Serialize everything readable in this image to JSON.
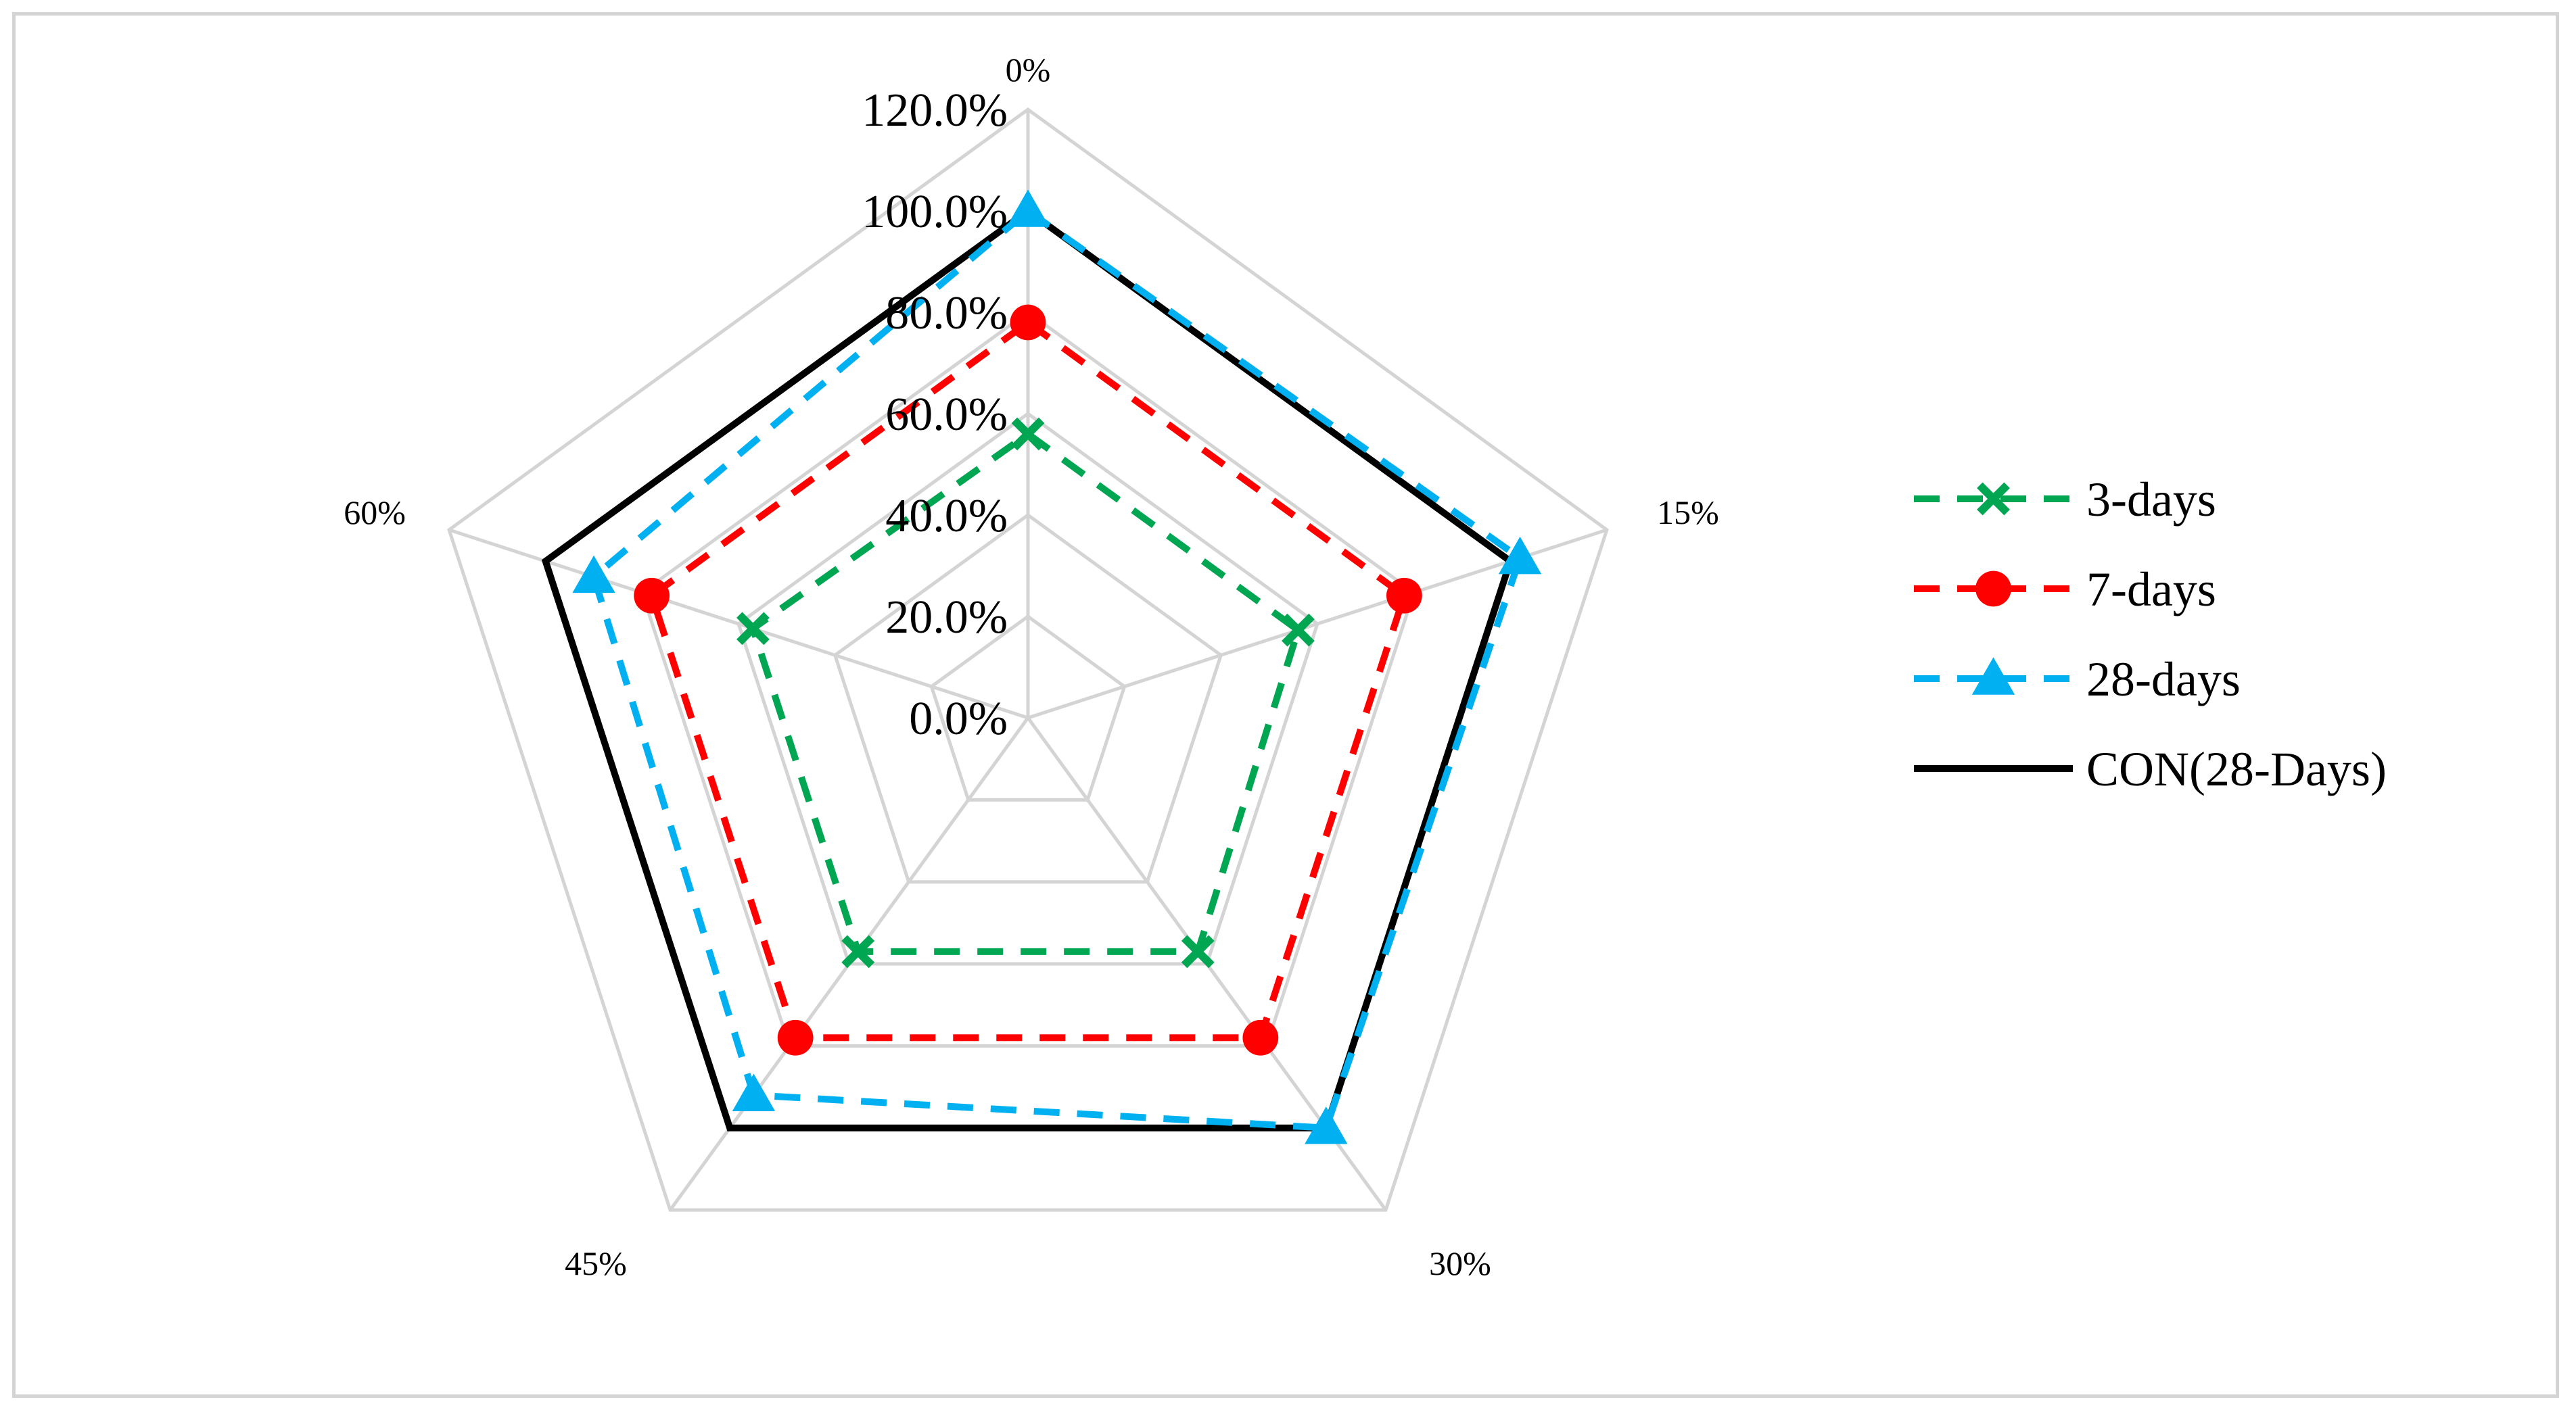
{
  "chart_data": {
    "type": "radar",
    "title": "",
    "categories": [
      "0%",
      "15%",
      "30%",
      "45%",
      "60%"
    ],
    "r_range": [
      0,
      1.2
    ],
    "r_ticks": [
      0,
      0.2,
      0.4,
      0.6,
      0.8,
      1.0,
      1.2
    ],
    "tick_labels": [
      "0.0%",
      "20.0%",
      "40.0%",
      "60.0%",
      "80.0%",
      "100.0%",
      "120.0%"
    ],
    "legend_position": "right",
    "series": [
      {
        "name": "3-days",
        "values": [
          0.56,
          0.56,
          0.57,
          0.57,
          0.57
        ],
        "color": "#00A651",
        "dash": "dashed",
        "marker": "x"
      },
      {
        "name": "7-days",
        "values": [
          0.78,
          0.78,
          0.78,
          0.78,
          0.78
        ],
        "color": "#FF0000",
        "dash": "dashed",
        "marker": "circle"
      },
      {
        "name": "28-days",
        "values": [
          1.0,
          1.02,
          1.0,
          0.92,
          0.9
        ],
        "color": "#00B0F0",
        "dash": "dashed",
        "marker": "triangle"
      },
      {
        "name": "CON(28-Days)",
        "values": [
          1.0,
          1.0,
          1.0,
          1.0,
          1.0
        ],
        "color": "#000000",
        "dash": "solid",
        "marker": "none"
      }
    ],
    "grid_color": "#d4d4d4"
  }
}
